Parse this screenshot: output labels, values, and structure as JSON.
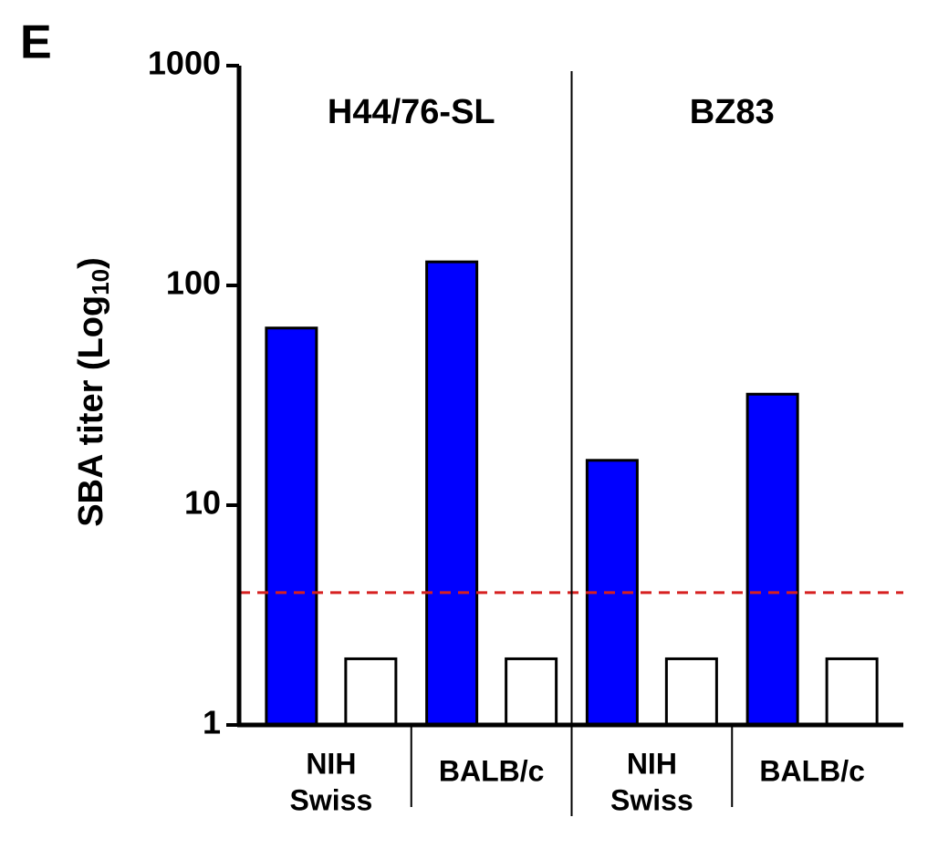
{
  "panel_label": "E",
  "chart_data": {
    "type": "bar",
    "log_scale": true,
    "ylabel": {
      "text": "SBA titer (Log",
      "subscript": "10",
      "suffix": ")"
    },
    "groups": [
      "H44/76-SL",
      "BZ83"
    ],
    "categories": [
      [
        "NIH",
        "Swiss"
      ],
      [
        "BALB/c"
      ],
      [
        "NIH",
        "Swiss"
      ],
      [
        "BALB/c"
      ]
    ],
    "series": [
      {
        "color": "#0000ff",
        "values": [
          64,
          128,
          16,
          32
        ]
      },
      {
        "color": "#ffffff",
        "values": [
          2,
          2,
          2,
          2
        ]
      }
    ],
    "threshold": {
      "value": 4,
      "color": "#d62020"
    },
    "ylim": [
      1,
      1000
    ],
    "yticks": [
      1,
      10,
      100,
      1000
    ],
    "grid": false
  }
}
